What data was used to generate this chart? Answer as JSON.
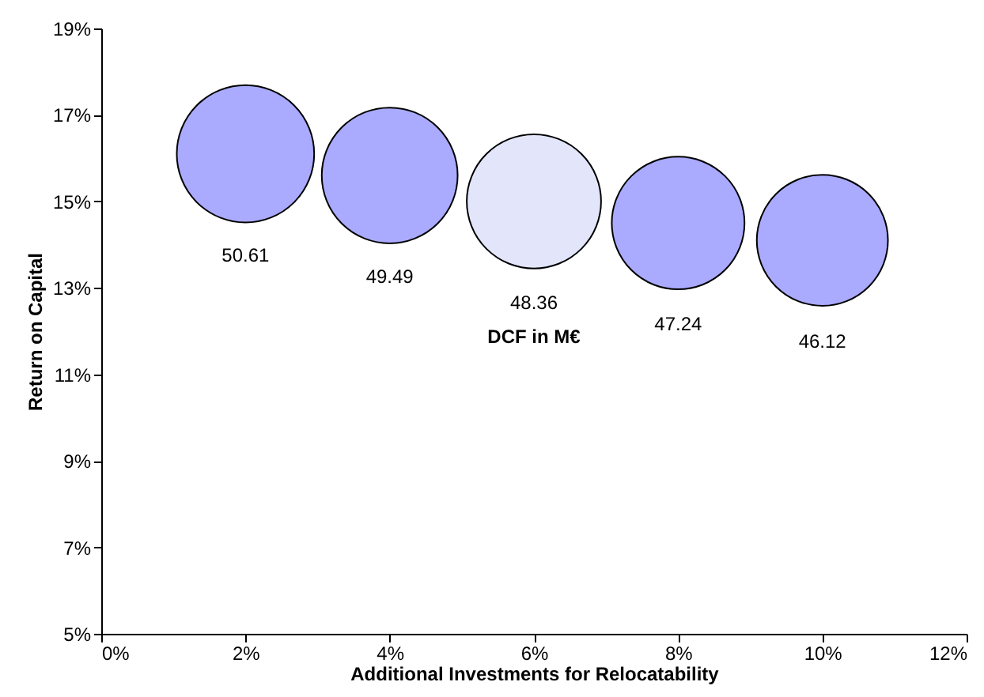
{
  "chart_data": {
    "type": "bubble",
    "xlabel": "Additional Investments for Relocatability",
    "ylabel": "Return on Capital",
    "x": [
      2,
      4,
      6,
      8,
      10
    ],
    "values": [
      16.1,
      15.6,
      15.0,
      14.5,
      14.1
    ],
    "sizes": [
      50.61,
      49.49,
      48.36,
      47.24,
      46.12
    ],
    "colors": [
      "#aaaaff",
      "#aaaaff",
      "#e3e6fb",
      "#aaaaff",
      "#aaaaff"
    ],
    "value_labels": [
      "50.61",
      "49.49",
      "48.36",
      "47.24",
      "46.12"
    ],
    "annotations": [
      "DCF in M€"
    ],
    "xlim": [
      0,
      12
    ],
    "xticks": [
      {
        "value": 0,
        "label": "0%"
      },
      {
        "value": 2,
        "label": "2%"
      },
      {
        "value": 4,
        "label": "4%"
      },
      {
        "value": 6,
        "label": "6%"
      },
      {
        "value": 8,
        "label": "8%"
      },
      {
        "value": 10,
        "label": "10%"
      },
      {
        "value": 12,
        "label": "12%"
      }
    ],
    "ylim": [
      5,
      19
    ],
    "yticks": [
      {
        "value": 5,
        "label": "5%"
      },
      {
        "value": 7,
        "label": "7%"
      },
      {
        "value": 9,
        "label": "9%"
      },
      {
        "value": 11,
        "label": "11%"
      },
      {
        "value": 13,
        "label": "13%"
      },
      {
        "value": 15,
        "label": "15%"
      },
      {
        "value": 17,
        "label": "17%"
      },
      {
        "value": 19,
        "label": "19%"
      }
    ],
    "grid": false
  }
}
